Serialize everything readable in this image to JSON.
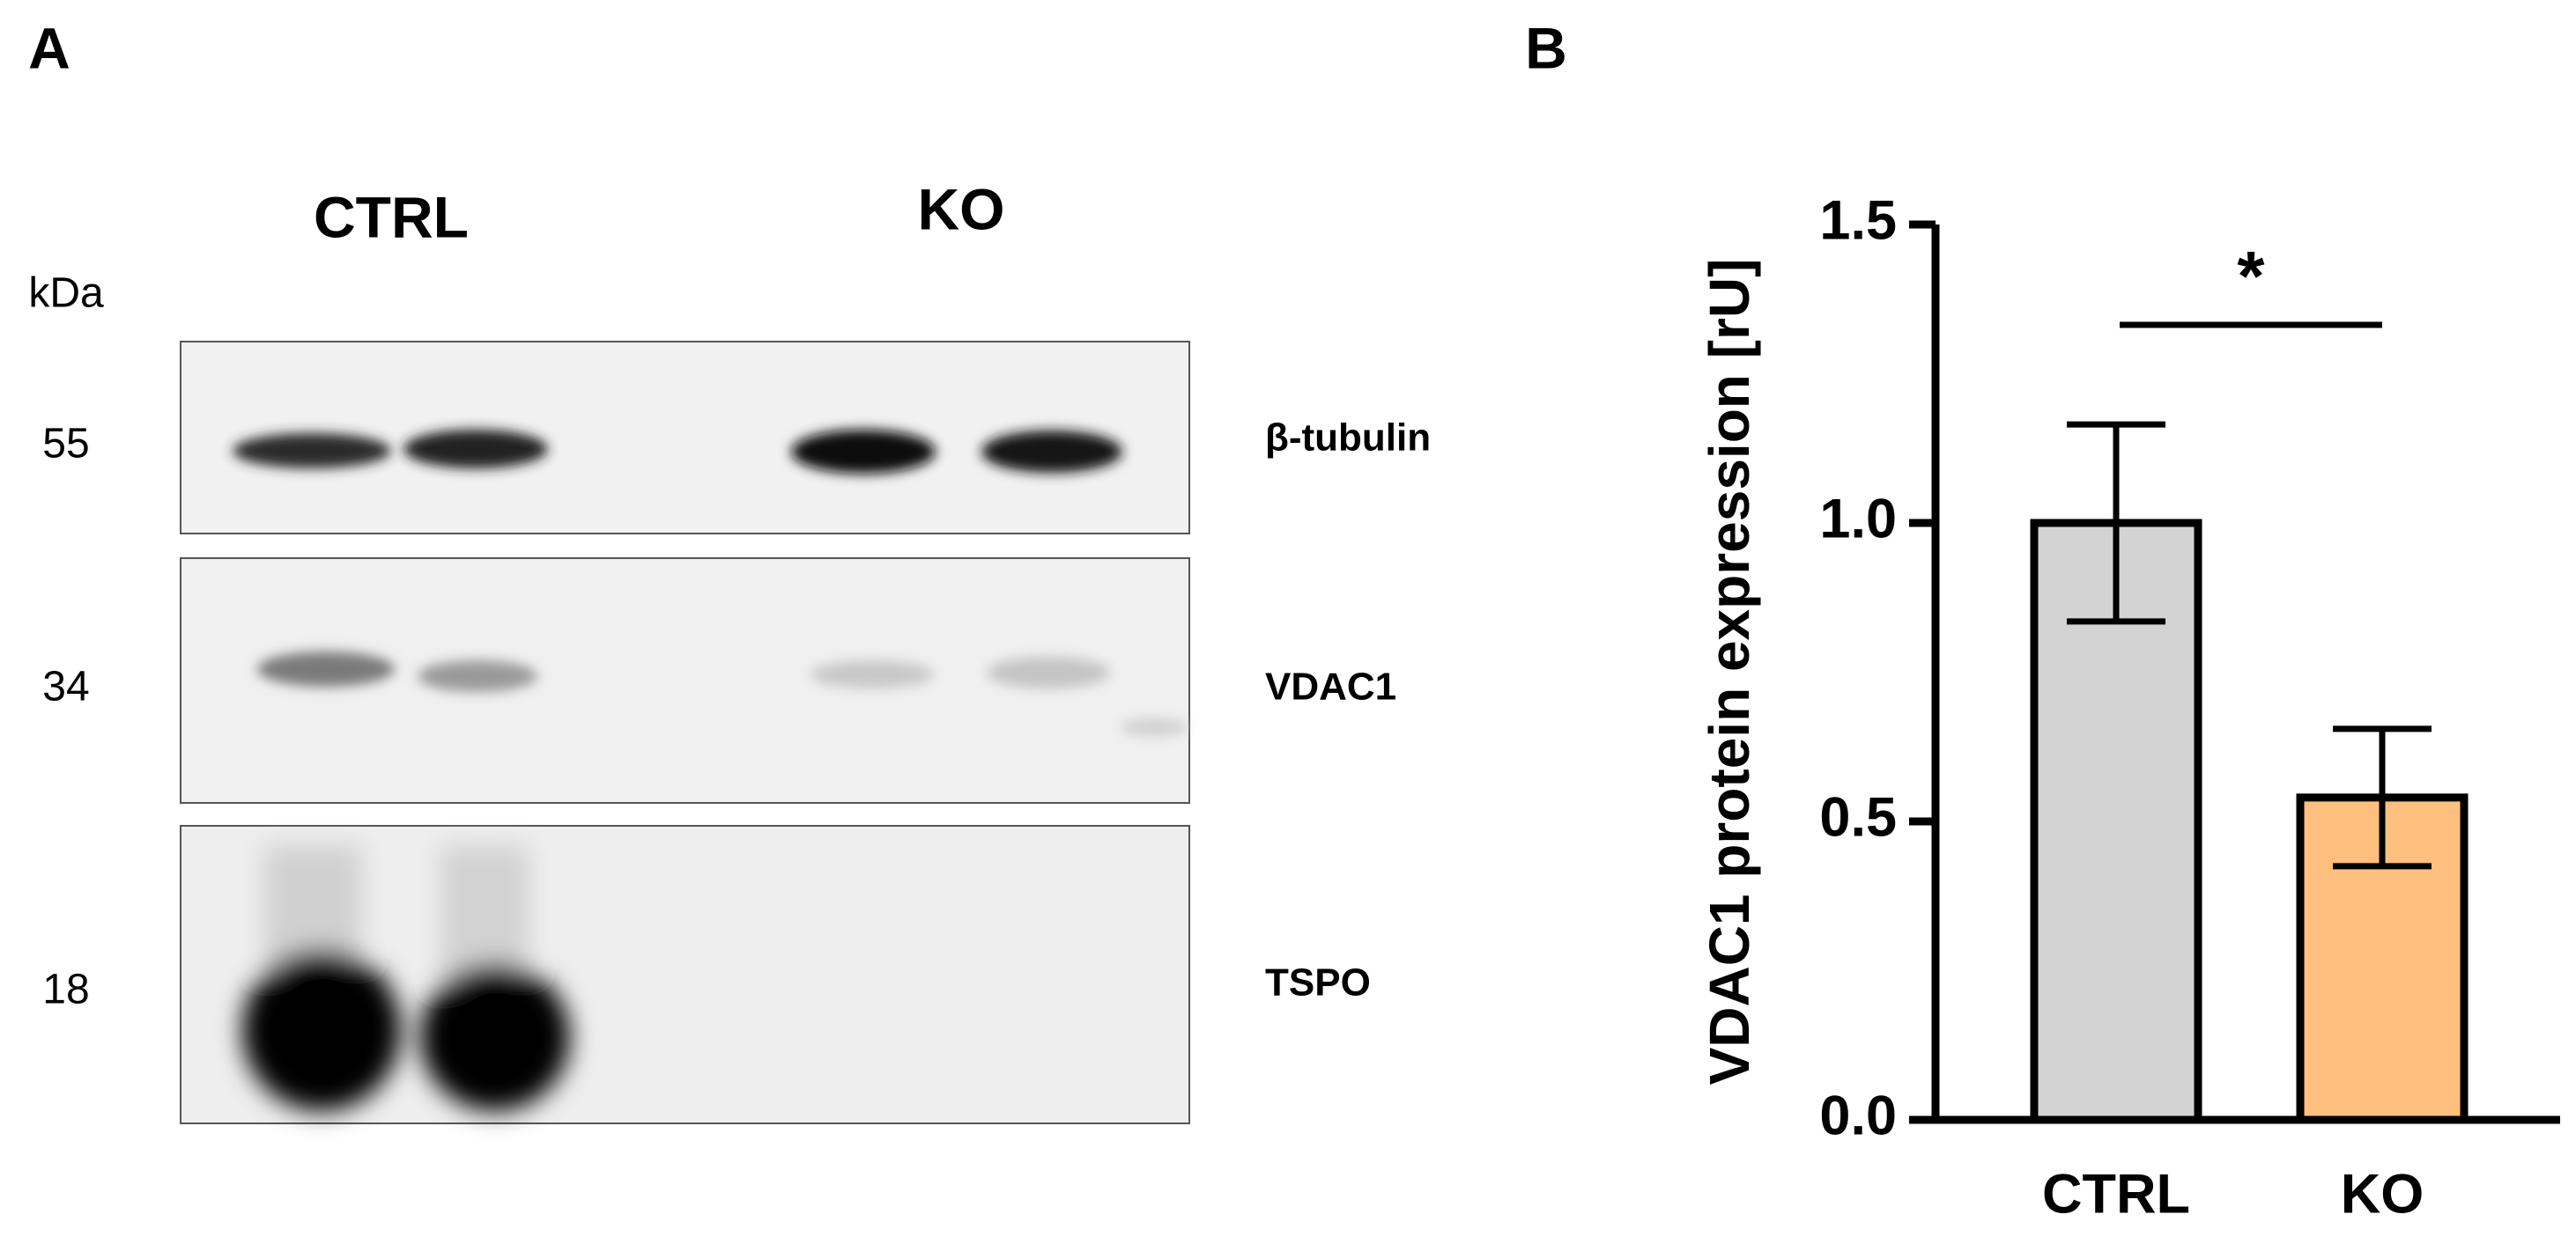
{
  "panel_labels": [
    "A",
    "B"
  ],
  "blot": {
    "lanes": [
      "CTRL",
      "KO"
    ],
    "unit": "kDa",
    "rows": [
      {
        "size": 55,
        "label": "β-tubulin"
      },
      {
        "size": 34,
        "label": "VDAC1"
      },
      {
        "size": 18,
        "label": "TSPO"
      }
    ]
  },
  "chart_data": {
    "type": "bar",
    "ylabel": "VDAC1 protein expression [rU]",
    "categories": [
      "CTRL",
      "KO"
    ],
    "values": [
      1.0,
      0.54
    ],
    "errors": [
      0.165,
      0.115
    ],
    "colors": [
      "#d3d3d3",
      "#ffc07f"
    ],
    "ylim": [
      0,
      1.5
    ],
    "yticks": [
      {
        "value": 0,
        "label": "0.0"
      },
      {
        "value": 0.5,
        "label": "0.5"
      },
      {
        "value": 1,
        "label": "1.0"
      },
      {
        "value": 1.5,
        "label": "1.5"
      }
    ],
    "annotation": "*"
  }
}
